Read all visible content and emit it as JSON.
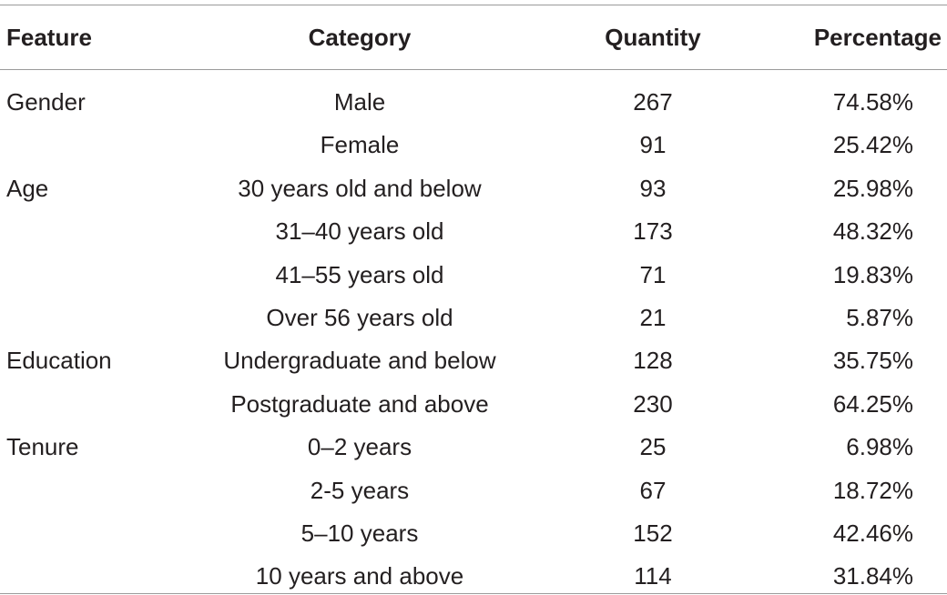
{
  "table": {
    "header": [
      "Feature",
      "Category",
      "Quantity",
      "Percentage"
    ],
    "groups": [
      {
        "feature": "Gender",
        "rows": [
          [
            "Male",
            267,
            "74.58%"
          ],
          [
            "Female",
            91,
            "25.42%"
          ]
        ]
      },
      {
        "feature": "Age",
        "rows": [
          [
            "30 years old and below",
            93,
            "25.98%"
          ],
          [
            "31–40 years old",
            173,
            "48.32%"
          ],
          [
            "41–55 years old",
            71,
            "19.83%"
          ],
          [
            "Over 56 years old",
            21,
            "5.87%"
          ]
        ]
      },
      {
        "feature": "Education",
        "rows": [
          [
            "Undergraduate and below",
            128,
            "35.75%"
          ],
          [
            "Postgraduate and above",
            230,
            "64.25%"
          ]
        ]
      },
      {
        "feature": "Tenure",
        "rows": [
          [
            "0–2 years",
            25,
            "6.98%"
          ],
          [
            "2-5 years",
            67,
            "18.72%"
          ],
          [
            "5–10 years",
            152,
            "42.46%"
          ],
          [
            "10 years and above",
            114,
            "31.84%"
          ]
        ]
      }
    ]
  }
}
